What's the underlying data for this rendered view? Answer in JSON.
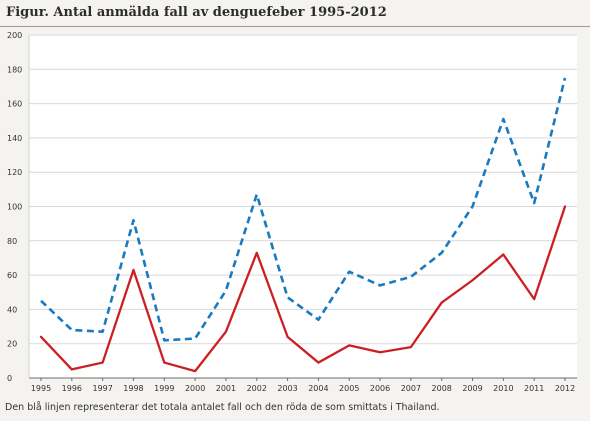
{
  "header": {
    "title": "Figur. Antal anmälda fall av denguefeber 1995-2012"
  },
  "caption": "Den blå linjen representerar det totala antalet fall och den röda de som smittats i Thailand.",
  "colors": {
    "total": "#1a7abf",
    "thailand": "#cc1f24",
    "grid": "#d9d9d9",
    "background": "#f4f3ef"
  },
  "chart_data": {
    "type": "line",
    "title": "Figur. Antal anmälda fall av denguefeber 1995-2012",
    "xlabel": "",
    "ylabel": "",
    "x": [
      "1995",
      "1996",
      "1997",
      "1998",
      "1999",
      "2000",
      "2001",
      "2002",
      "2003",
      "2004",
      "2005",
      "2006",
      "2007",
      "2008",
      "2009",
      "2010",
      "2011",
      "2012"
    ],
    "ylim": [
      0,
      200
    ],
    "yticks": [
      0,
      20,
      40,
      60,
      80,
      100,
      120,
      140,
      160,
      180,
      200
    ],
    "grid": true,
    "series": [
      {
        "key": "total",
        "style": "dashed",
        "values": [
          45,
          28,
          27,
          92,
          22,
          23,
          51,
          107,
          47,
          34,
          62,
          54,
          59,
          73,
          100,
          151,
          102,
          175
        ]
      },
      {
        "key": "thailand",
        "style": "solid",
        "values": [
          24,
          5,
          9,
          63,
          9,
          4,
          27,
          73,
          24,
          9,
          19,
          15,
          18,
          44,
          57,
          72,
          46,
          100
        ]
      }
    ]
  }
}
